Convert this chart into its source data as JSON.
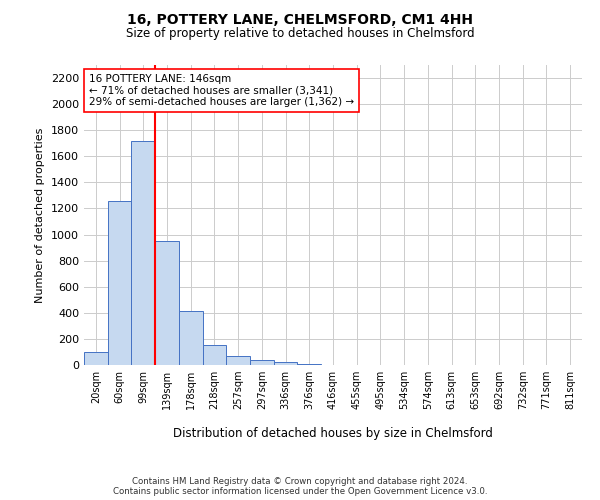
{
  "title1": "16, POTTERY LANE, CHELMSFORD, CM1 4HH",
  "title2": "Size of property relative to detached houses in Chelmsford",
  "xlabel": "Distribution of detached houses by size in Chelmsford",
  "ylabel": "Number of detached properties",
  "categories": [
    "20sqm",
    "60sqm",
    "99sqm",
    "139sqm",
    "178sqm",
    "218sqm",
    "257sqm",
    "297sqm",
    "336sqm",
    "376sqm",
    "416sqm",
    "455sqm",
    "495sqm",
    "534sqm",
    "574sqm",
    "613sqm",
    "653sqm",
    "692sqm",
    "732sqm",
    "771sqm",
    "811sqm"
  ],
  "values": [
    100,
    1255,
    1720,
    950,
    415,
    150,
    70,
    40,
    25,
    8,
    3,
    2,
    1,
    0,
    0,
    0,
    0,
    0,
    0,
    0,
    0
  ],
  "bar_color": "#c6d9f0",
  "bar_edge_color": "#4472c4",
  "red_line_index": 3,
  "annotation_line1": "16 POTTERY LANE: 146sqm",
  "annotation_line2": "← 71% of detached houses are smaller (3,341)",
  "annotation_line3": "29% of semi-detached houses are larger (1,362) →",
  "ylim": [
    0,
    2300
  ],
  "yticks": [
    0,
    200,
    400,
    600,
    800,
    1000,
    1200,
    1400,
    1600,
    1800,
    2000,
    2200
  ],
  "footer1": "Contains HM Land Registry data © Crown copyright and database right 2024.",
  "footer2": "Contains public sector information licensed under the Open Government Licence v3.0.",
  "bg_color": "#ffffff",
  "grid_color": "#cccccc"
}
